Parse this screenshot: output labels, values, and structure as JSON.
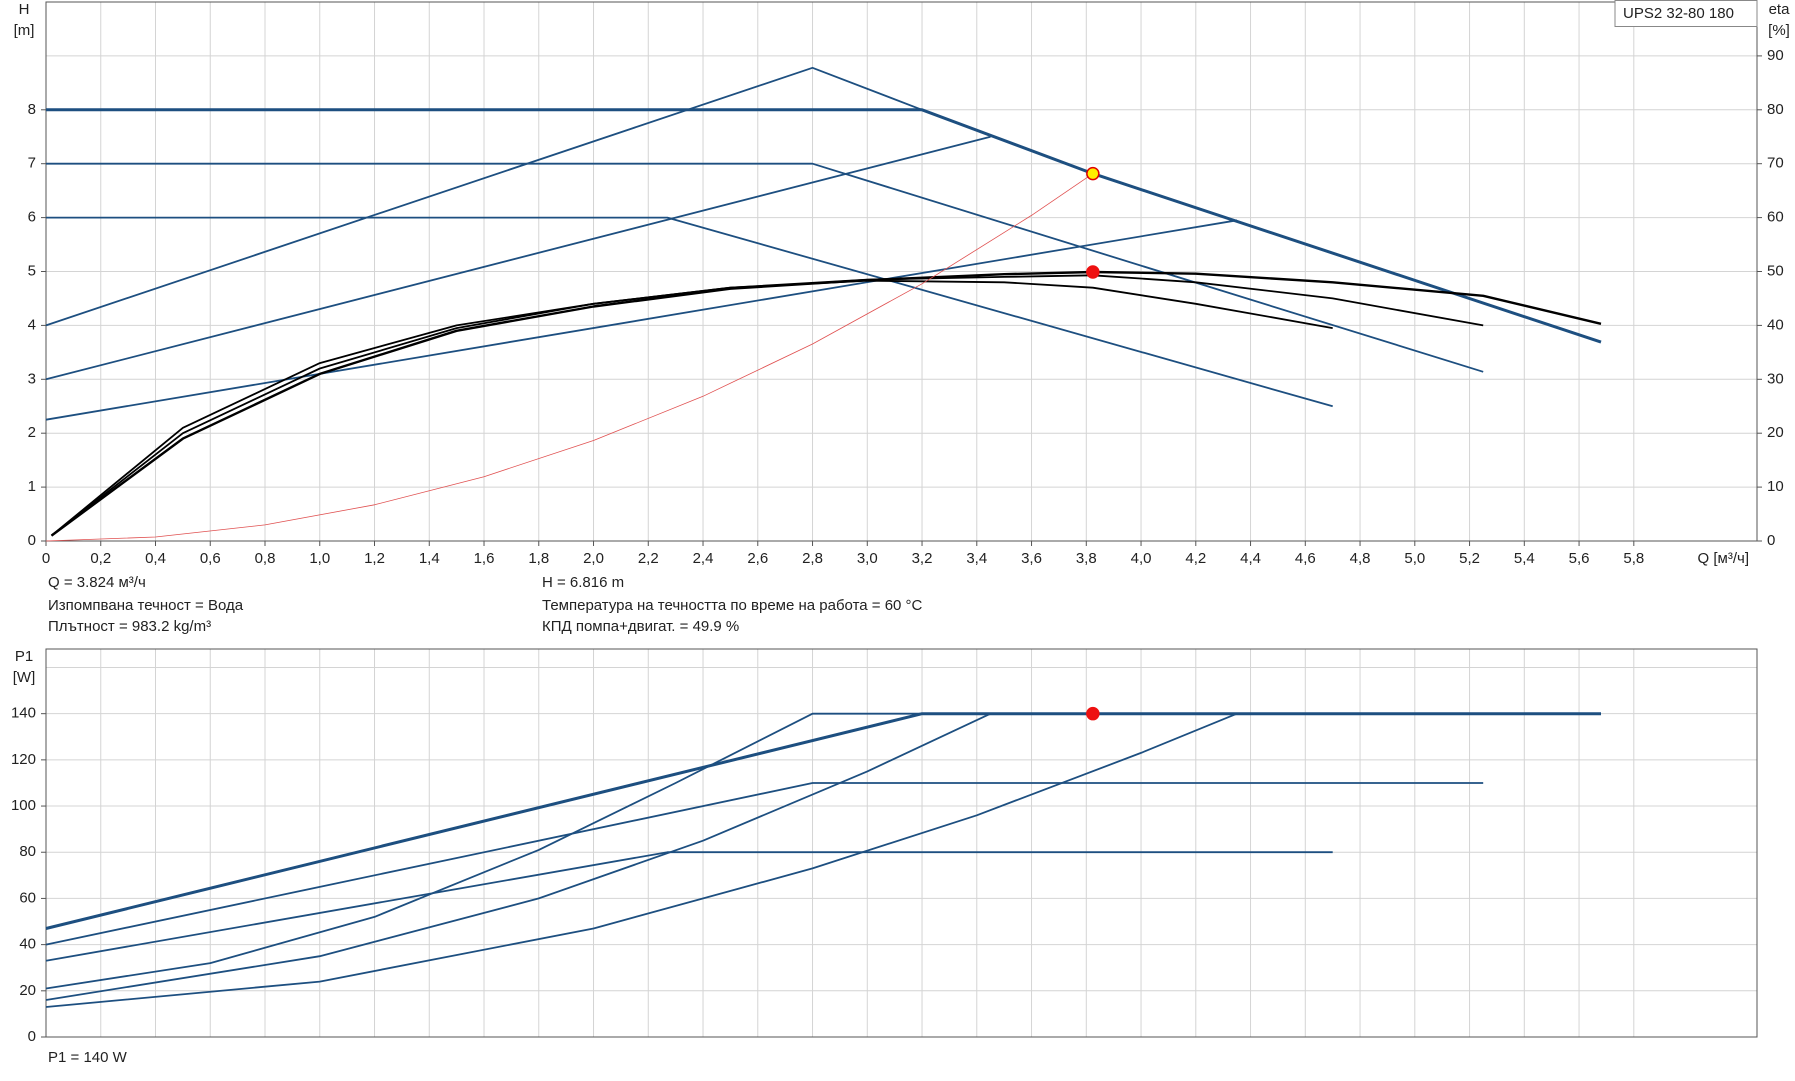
{
  "chart_data": [
    {
      "type": "line",
      "model": "UPS2 32-80 180",
      "ylabel": [
        "H",
        "[m]"
      ],
      "y2label": [
        "eta",
        "[%]"
      ],
      "xlabel": "Q [м³/ч]",
      "xlim": [
        0,
        6.25
      ],
      "ylim": [
        0,
        10
      ],
      "y2lim": [
        0,
        100
      ],
      "xticks": [
        0,
        {
          "value": 0.2,
          "label": "0,2"
        },
        {
          "value": 0.4,
          "label": "0,4"
        },
        {
          "value": 0.6,
          "label": "0,6"
        },
        {
          "value": 0.8,
          "label": "0,8"
        },
        {
          "value": 1.0,
          "label": "1,0"
        },
        {
          "value": 1.2,
          "label": "1,2"
        },
        {
          "value": 1.4,
          "label": "1,4"
        },
        {
          "value": 1.6,
          "label": "1,6"
        },
        {
          "value": 1.8,
          "label": "1,8"
        },
        {
          "value": 2.0,
          "label": "2,0"
        },
        {
          "value": 2.2,
          "label": "2,2"
        },
        {
          "value": 2.4,
          "label": "2,4"
        },
        {
          "value": 2.6,
          "label": "2,6"
        },
        {
          "value": 2.8,
          "label": "2,8"
        },
        {
          "value": 3.0,
          "label": "3,0"
        },
        {
          "value": 3.2,
          "label": "3,2"
        },
        {
          "value": 3.4,
          "label": "3,4"
        },
        {
          "value": 3.6,
          "label": "3,6"
        },
        {
          "value": 3.8,
          "label": "3,8"
        },
        {
          "value": 4.0,
          "label": "4,0"
        },
        {
          "value": 4.2,
          "label": "4,2"
        },
        {
          "value": 4.4,
          "label": "4,4"
        },
        {
          "value": 4.6,
          "label": "4,6"
        },
        {
          "value": 4.8,
          "label": "4,8"
        },
        {
          "value": 5.0,
          "label": "5,0"
        },
        {
          "value": 5.2,
          "label": "5,2"
        },
        {
          "value": 5.4,
          "label": "5,4"
        },
        {
          "value": 5.6,
          "label": "5,6"
        },
        {
          "value": 5.8,
          "label": "5,8"
        }
      ],
      "yticks": [
        0,
        1,
        2,
        3,
        4,
        5,
        6,
        7,
        8
      ],
      "y2ticks": [
        0,
        10,
        20,
        30,
        40,
        50,
        60,
        70,
        80,
        90
      ],
      "grid": true,
      "series": [
        {
          "color": "#1d4f80",
          "linewidth": 3,
          "x": [
            0,
            3.2,
            3.824,
            5.68
          ],
          "values": [
            8,
            8,
            6.816,
            3.69
          ]
        },
        {
          "color": "#1d4f80",
          "linewidth": 1.8,
          "x": [
            0,
            2.8,
            3.2
          ],
          "values": [
            4,
            8.78,
            8
          ]
        },
        {
          "color": "#1d4f80",
          "linewidth": 1.8,
          "x": [
            0,
            3.45
          ],
          "values": [
            3,
            7.5
          ]
        },
        {
          "color": "#1d4f80",
          "linewidth": 1.8,
          "x": [
            0,
            4.35
          ],
          "values": [
            2.25,
            5.95
          ]
        },
        {
          "color": "#1d4f80",
          "linewidth": 1.8,
          "x": [
            0,
            2.8,
            5.25
          ],
          "values": [
            7,
            7,
            3.14
          ]
        },
        {
          "color": "#1d4f80",
          "linewidth": 1.8,
          "x": [
            0,
            2.27,
            4.7
          ],
          "values": [
            6,
            6,
            2.5
          ]
        },
        {
          "color": "#000000",
          "linewidth": 1.8,
          "axis": "y2",
          "x": [
            0.02,
            0.5,
            1.0,
            1.5,
            2.0,
            2.5,
            3.0,
            3.5,
            3.824,
            4.2,
            4.7
          ],
          "values": [
            1,
            21,
            33,
            40,
            44,
            47,
            48.3,
            48,
            47,
            44,
            39.5
          ]
        },
        {
          "color": "#000000",
          "linewidth": 1.8,
          "axis": "y2",
          "x": [
            0.02,
            0.5,
            1.0,
            1.5,
            2.0,
            2.5,
            3.0,
            3.5,
            3.824,
            4.2,
            4.7,
            5.25
          ],
          "values": [
            1,
            20,
            32,
            39.5,
            44,
            47,
            48.5,
            49,
            49.3,
            48,
            45,
            40
          ]
        },
        {
          "color": "#000000",
          "linewidth": 2.4,
          "axis": "y2",
          "x": [
            0.02,
            0.5,
            1.0,
            1.5,
            2.0,
            2.5,
            3.0,
            3.5,
            3.824,
            4.2,
            4.7,
            5.25,
            5.68
          ],
          "values": [
            1,
            19,
            31,
            39,
            43.5,
            46.8,
            48.4,
            49.5,
            49.9,
            49.6,
            48,
            45.5,
            40.3
          ]
        },
        {
          "color": "#e05050",
          "linewidth": 0.8,
          "x": [
            0,
            0.4,
            0.8,
            1.2,
            1.6,
            2.0,
            2.4,
            2.8,
            3.2,
            3.6,
            3.824
          ],
          "values": [
            0,
            0.075,
            0.298,
            0.671,
            1.193,
            1.864,
            2.684,
            3.654,
            4.772,
            6.04,
            6.816
          ]
        }
      ],
      "points": [
        {
          "color": "#ffee00",
          "stroke": "#e00000",
          "x": 3.824,
          "value": 6.816
        },
        {
          "color": "#ee1111",
          "stroke": "#ee1111",
          "axis": "y2",
          "x": 3.824,
          "value": 49.9
        }
      ],
      "info": [
        "Q = 3.824 м³/ч",
        "Изпомпвана течност = Вода",
        "Плътност = 983.2 kg/m³",
        "H = 6.816 m",
        "Температура на течността по време на работа = 60 °C",
        "КПД помпа+двигат. = 49.9 %"
      ]
    },
    {
      "type": "line",
      "ylabel": [
        "P1",
        "[W]"
      ],
      "xlim": [
        0,
        6.25
      ],
      "ylim": [
        0,
        168
      ],
      "yticks": [
        0,
        20,
        40,
        60,
        80,
        100,
        120,
        140
      ],
      "grid": true,
      "series": [
        {
          "color": "#1d4f80",
          "linewidth": 3,
          "x": [
            0,
            3.2,
            5.68
          ],
          "values": [
            47,
            140,
            140
          ]
        },
        {
          "color": "#1d4f80",
          "linewidth": 1.8,
          "x": [
            0,
            2.8,
            5.25
          ],
          "values": [
            40,
            110,
            110
          ]
        },
        {
          "color": "#1d4f80",
          "linewidth": 1.8,
          "x": [
            0,
            2.27,
            4.7
          ],
          "values": [
            33,
            80,
            80
          ]
        },
        {
          "color": "#1d4f80",
          "linewidth": 1.8,
          "x": [
            0,
            0.6,
            1.2,
            1.8,
            2.3,
            2.8,
            3.2
          ],
          "values": [
            21,
            32,
            52,
            81,
            110,
            140,
            140
          ]
        },
        {
          "color": "#1d4f80",
          "linewidth": 1.8,
          "x": [
            0,
            1.0,
            1.8,
            2.4,
            3.0,
            3.45
          ],
          "values": [
            16,
            35,
            60,
            85,
            115,
            140
          ]
        },
        {
          "color": "#1d4f80",
          "linewidth": 1.8,
          "x": [
            0,
            1.0,
            2.0,
            2.8,
            3.4,
            4.0,
            4.35
          ],
          "values": [
            13,
            24,
            47,
            73,
            96,
            123,
            140
          ]
        }
      ],
      "points": [
        {
          "color": "#ee1111",
          "stroke": "#ee1111",
          "x": 3.824,
          "value": 140
        }
      ],
      "info": [
        "P1 = 140 W"
      ]
    }
  ]
}
